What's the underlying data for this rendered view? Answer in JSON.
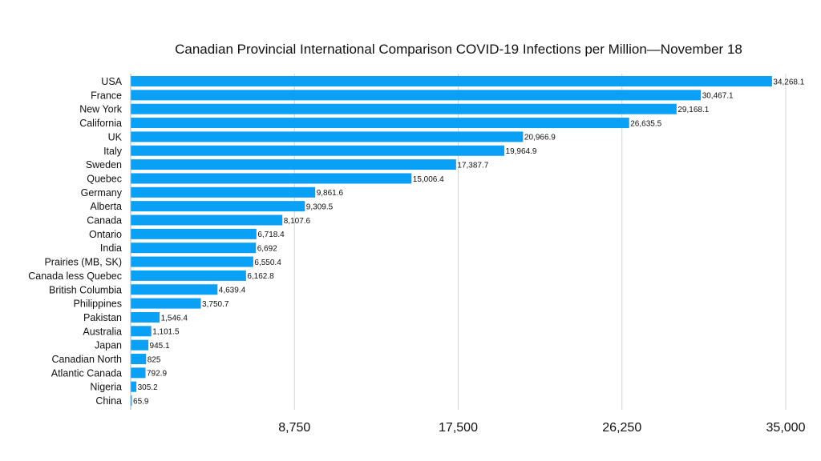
{
  "chart_data": {
    "type": "bar",
    "orientation": "horizontal",
    "title": "Canadian Provincial International Comparison COVID-19 Infections per Million—November 18",
    "xlabel": "",
    "ylabel": "",
    "xlim": [
      0,
      35000
    ],
    "xticks": [
      "8,750",
      "17,500",
      "26,250",
      "35,000"
    ],
    "xtick_values": [
      8750,
      17500,
      26250,
      35000
    ],
    "grid": true,
    "bar_color": "#0aa0f5",
    "categories": [
      "USA",
      "France",
      "New York",
      "California",
      "UK",
      "Italy",
      "Sweden",
      "Quebec",
      "Germany",
      "Alberta",
      "Canada",
      "Ontario",
      "India",
      "Prairies (MB, SK)",
      "Canada less Quebec",
      "British Columbia",
      "Philippines",
      "Pakistan",
      "Australia",
      "Japan",
      "Canadian North",
      "Atlantic Canada",
      "Nigeria",
      "China"
    ],
    "values": [
      34268.1,
      30467.1,
      29168.1,
      26635.5,
      20966.9,
      19964.9,
      17387.7,
      15006.4,
      9861.6,
      9309.5,
      8107.6,
      6718.4,
      6692,
      6550.4,
      6162.8,
      4639.4,
      3750.7,
      1546.4,
      1101.5,
      945.1,
      825,
      792.9,
      305.2,
      65.9
    ],
    "value_labels": [
      "34,268.1",
      "30,467.1",
      "29,168.1",
      "26,635.5",
      "20,966.9",
      "19,964.9",
      "17,387.7",
      "15,006.4",
      "9,861.6",
      "9,309.5",
      "8,107.6",
      "6,718.4",
      "6,692",
      "6,550.4",
      "6,162.8",
      "4,639.4",
      "3,750.7",
      "1,546.4",
      "1,101.5",
      "945.1",
      "825",
      "792.9",
      "305.2",
      "65.9"
    ]
  }
}
